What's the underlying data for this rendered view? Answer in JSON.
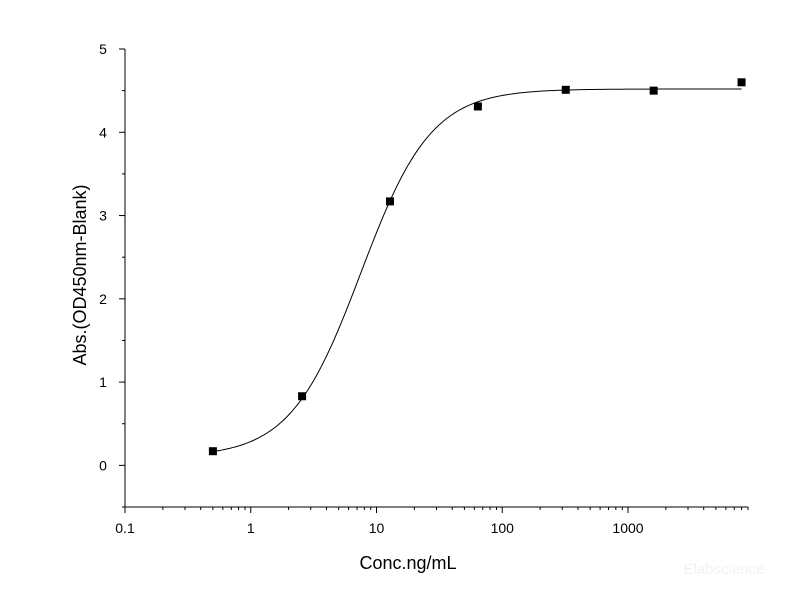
{
  "chart_data": {
    "type": "scatter",
    "xlabel": "Conc.ng/mL",
    "ylabel": "Abs.(OD450nm-Blank)",
    "x_scale": "log",
    "xlim": [
      0.1,
      9000
    ],
    "ylim": [
      -0.5,
      5
    ],
    "x_ticks": [
      {
        "value": 0.1,
        "label": "0.1"
      },
      {
        "value": 1,
        "label": "1"
      },
      {
        "value": 10,
        "label": "10"
      },
      {
        "value": 100,
        "label": "100"
      },
      {
        "value": 1000,
        "label": "1000"
      }
    ],
    "y_ticks": [
      {
        "value": 0,
        "label": "0"
      },
      {
        "value": 1,
        "label": "1"
      },
      {
        "value": 2,
        "label": "2"
      },
      {
        "value": 3,
        "label": "3"
      },
      {
        "value": 4,
        "label": "4"
      },
      {
        "value": 5,
        "label": "5"
      }
    ],
    "grid": false,
    "points": [
      {
        "x": 0.5,
        "y": 0.17
      },
      {
        "x": 2.56,
        "y": 0.83
      },
      {
        "x": 12.8,
        "y": 3.17
      },
      {
        "x": 64,
        "y": 4.31
      },
      {
        "x": 320,
        "y": 4.51
      },
      {
        "x": 1600,
        "y": 4.5
      },
      {
        "x": 8000,
        "y": 4.6
      }
    ],
    "fit": {
      "type": "4PL",
      "bottom": 0.1,
      "top": 4.52,
      "ec50": 7.5,
      "hill": 1.55,
      "x_start": 0.5,
      "x_end": 8000
    },
    "marker_color": "#000000",
    "line_color": "#000000"
  },
  "watermark": "Elabscience"
}
